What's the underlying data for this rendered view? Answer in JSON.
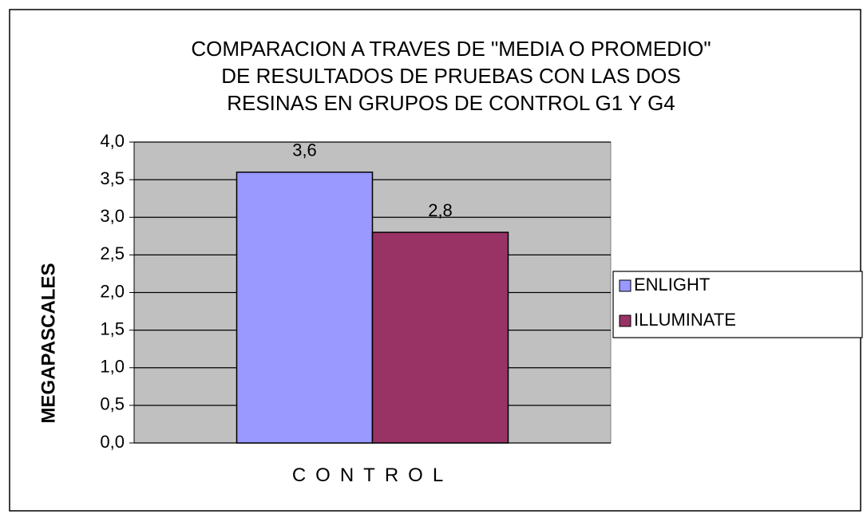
{
  "chart_data": {
    "type": "bar",
    "title": "COMPARACION A TRAVES DE \"MEDIA O PROMEDIO\"\nDE RESULTADOS DE PRUEBAS CON LAS DOS\nRESINAS EN GRUPOS DE CONTROL G1 Y G4",
    "y_label": "MEGAPASCALES",
    "categories": [
      "CONTROL"
    ],
    "series": [
      {
        "name": "ENLIGHT",
        "color": "#9999ff",
        "values": [
          3.6
        ],
        "value_labels": [
          "3,6"
        ]
      },
      {
        "name": "ILLUMINATE",
        "color": "#993366",
        "values": [
          2.8
        ],
        "value_labels": [
          "2,8"
        ]
      }
    ],
    "ylim": [
      0,
      4
    ],
    "yticks": [
      {
        "value": 0,
        "label": "0,0"
      },
      {
        "value": 0.5,
        "label": "0,5"
      },
      {
        "value": 1,
        "label": "1,0"
      },
      {
        "value": 1.5,
        "label": "1,5"
      },
      {
        "value": 2,
        "label": "2,0"
      },
      {
        "value": 2.5,
        "label": "2,5"
      },
      {
        "value": 3,
        "label": "3,0"
      },
      {
        "value": 3.5,
        "label": "3,5"
      },
      {
        "value": 4,
        "label": "4,0"
      }
    ],
    "grid": true,
    "legend": "right",
    "plot_background": "#c0c0c0"
  }
}
